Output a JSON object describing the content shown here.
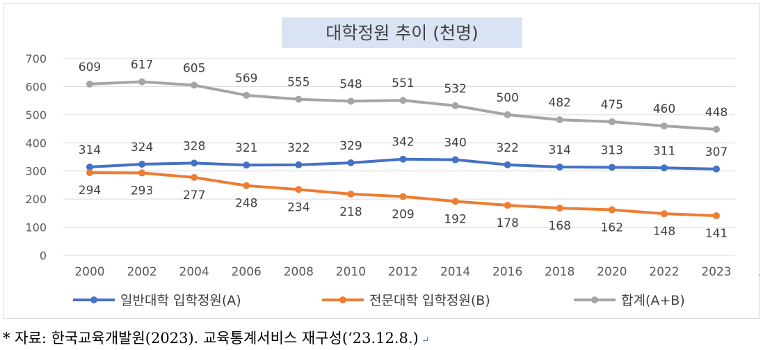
{
  "chart_data": {
    "type": "line",
    "title": "대학정원 추이 (천명)",
    "categories": [
      "2000",
      "2002",
      "2004",
      "2006",
      "2008",
      "2010",
      "2012",
      "2014",
      "2016",
      "2018",
      "2020",
      "2022",
      "2023"
    ],
    "ylim": [
      0,
      700
    ],
    "yticks": [
      0,
      100,
      200,
      300,
      400,
      500,
      600,
      700
    ],
    "grid": true,
    "legend_position": "bottom",
    "series": [
      {
        "name": "일반대학 입학정원(A)",
        "color": "#4472c4",
        "values": [
          314,
          324,
          328,
          321,
          322,
          329,
          342,
          340,
          322,
          314,
          313,
          311,
          307
        ],
        "label_pos": "above"
      },
      {
        "name": "전문대학 입학정원(B)",
        "color": "#ed7d31",
        "values": [
          294,
          293,
          277,
          248,
          234,
          218,
          209,
          192,
          178,
          168,
          162,
          148,
          141
        ],
        "label_pos": "below"
      },
      {
        "name": "합계(A+B)",
        "color": "#a5a5a5",
        "values": [
          609,
          617,
          605,
          569,
          555,
          548,
          551,
          532,
          500,
          482,
          475,
          460,
          448
        ],
        "label_pos": "above"
      }
    ]
  },
  "footer": {
    "source_note": "* 자료: 한국교육개발원(2023). 교육통계서비스 재구성(‘23.12.8.)",
    "return_mark": "↵",
    "side_mark": "."
  }
}
